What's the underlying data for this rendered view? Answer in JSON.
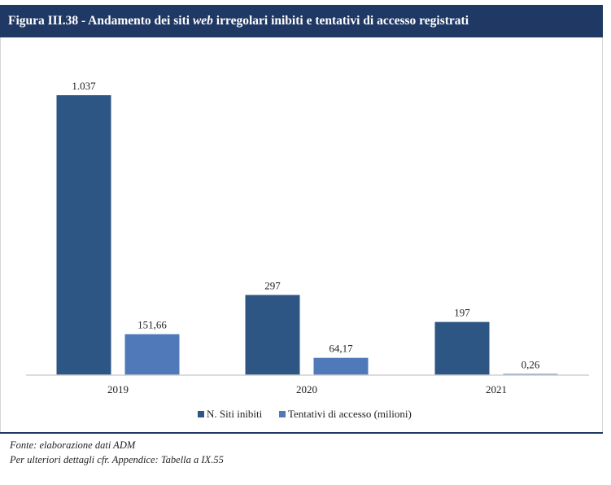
{
  "title": {
    "prefix": "Figura III.38 - Andamento dei siti ",
    "emph": "web",
    "suffix": " irregolari inibiti e tentativi di accesso registrati"
  },
  "footer": {
    "source": "Fonte: elaborazione dati ADM",
    "details": "Per ulteriori dettagli cfr. Appendice: Tabella a IX.55"
  },
  "colors": {
    "header_bg": "#1f3864",
    "series_1": "#2e5684",
    "series_2": "#5079b9"
  },
  "chart_data": {
    "type": "bar",
    "categories": [
      "2019",
      "2020",
      "2021"
    ],
    "series": [
      {
        "name": "N. Siti inibiti",
        "values": [
          1037,
          297,
          197
        ],
        "labels": [
          "1.037",
          "297",
          "197"
        ]
      },
      {
        "name": "Tentativi di accesso (milioni)",
        "values": [
          151.66,
          64.17,
          0.26
        ],
        "labels": [
          "151,66",
          "64,17",
          "0,26"
        ]
      }
    ],
    "ylim": [
      0,
      1037
    ],
    "grid": false,
    "legend": "bottom"
  }
}
